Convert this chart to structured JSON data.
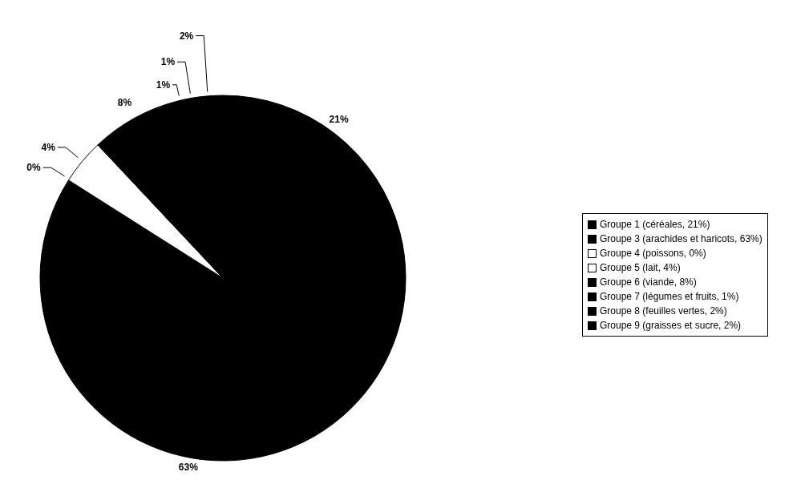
{
  "chart_data": {
    "type": "pie",
    "categories": [
      "Groupe 1 (céréales, 21%)",
      "Groupe 3 (arachides et haricots, 63%)",
      "Groupe 4 (poissons, 0%)",
      "Groupe 5 (lait, 4%)",
      "Groupe 6 (viande, 8%)",
      "Groupe 7 (légumes et fruits, 1%)",
      "Groupe 8 (feuilles vertes, 2%)",
      "Groupe 9 (graisses et sucre, 2%)"
    ],
    "values": [
      21,
      63,
      0,
      4,
      8,
      1,
      1,
      2
    ],
    "value_labels": [
      "21%",
      "63%",
      "0%",
      "4%",
      "8%",
      "1%",
      "1%",
      "2%"
    ],
    "colors": [
      "#000000",
      "#000000",
      "#ffffff",
      "#ffffff",
      "#000000",
      "#000000",
      "#000000",
      "#000000"
    ],
    "legend": "right"
  }
}
